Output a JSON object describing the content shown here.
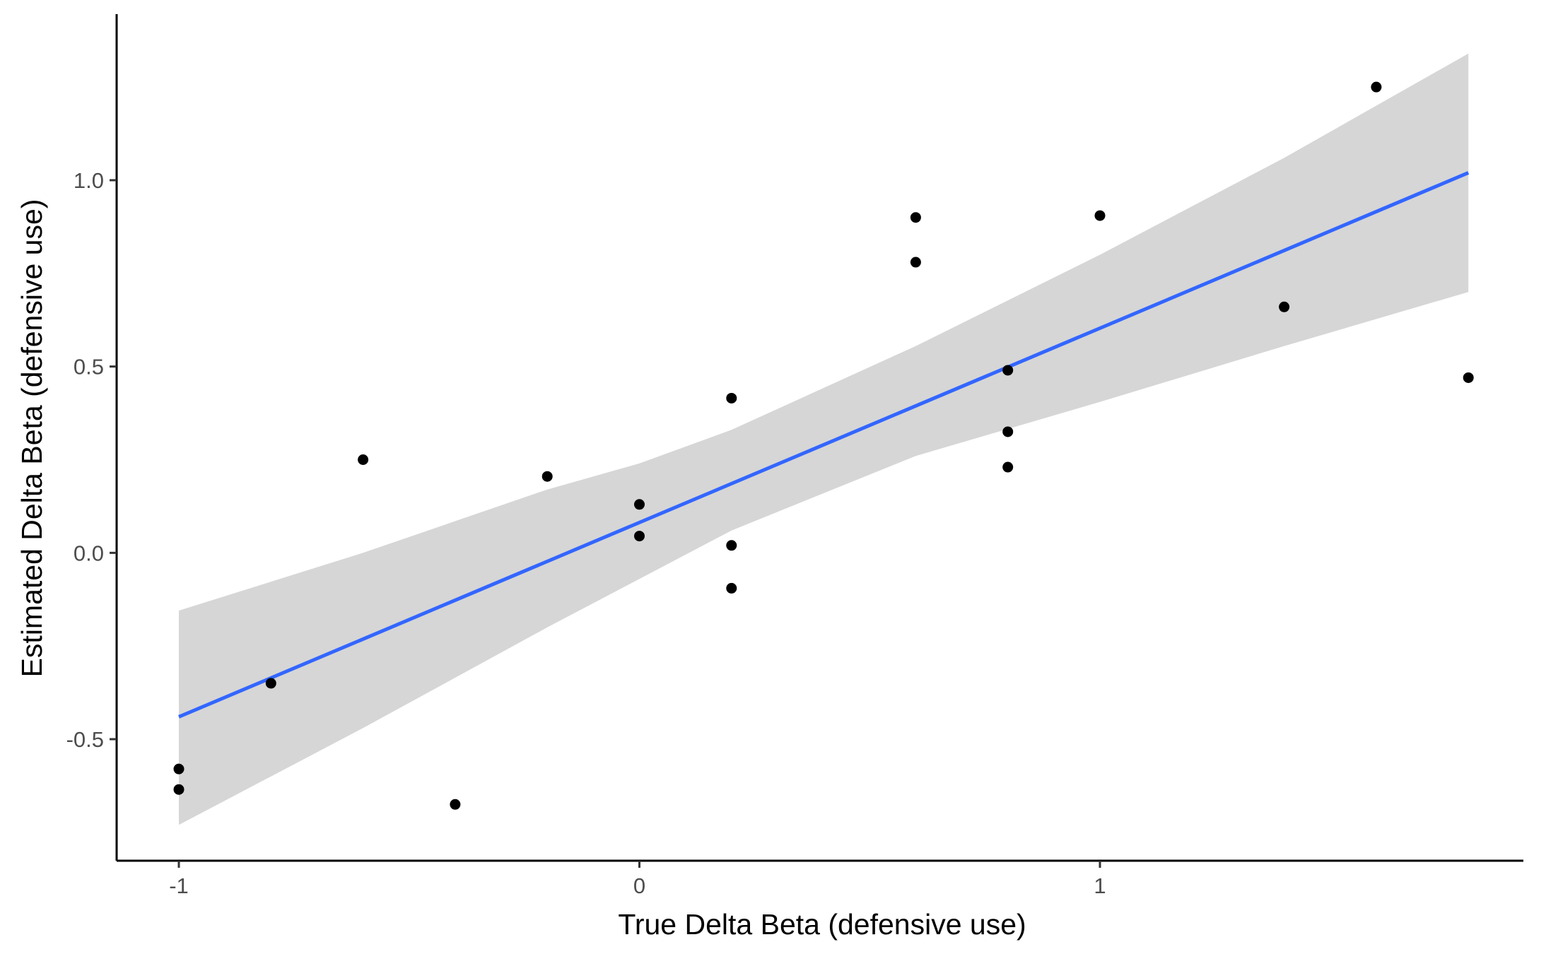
{
  "chart_data": {
    "type": "scatter",
    "xlabel": "True Delta Beta (defensive use)",
    "ylabel": "Estimated Delta Beta (defensive use)",
    "xlim": [
      -1.14,
      1.94
    ],
    "ylim": [
      -0.83,
      1.44
    ],
    "x_ticks": [
      -1,
      0,
      1
    ],
    "x_tick_labels": [
      "-1",
      "0",
      "1"
    ],
    "y_ticks": [
      -0.5,
      0.0,
      0.5,
      1.0
    ],
    "y_tick_labels": [
      "-0.5",
      "0.0",
      "0.5",
      "1.0"
    ],
    "grid": false,
    "legend": "none",
    "colors": {
      "points": "#000000",
      "fit_line": "#3366FF",
      "confidence_band": "#d6d6d6",
      "axis": "#000000",
      "tick_text": "#4d4d4d"
    },
    "points": [
      {
        "x": -1.0,
        "y": -0.58
      },
      {
        "x": -1.0,
        "y": -0.635
      },
      {
        "x": -0.8,
        "y": -0.35
      },
      {
        "x": -0.6,
        "y": 0.25
      },
      {
        "x": -0.4,
        "y": -0.675
      },
      {
        "x": -0.2,
        "y": 0.205
      },
      {
        "x": 0.0,
        "y": 0.13
      },
      {
        "x": 0.0,
        "y": 0.045
      },
      {
        "x": 0.2,
        "y": 0.415
      },
      {
        "x": 0.2,
        "y": 0.02
      },
      {
        "x": 0.2,
        "y": -0.095
      },
      {
        "x": 0.6,
        "y": 0.9
      },
      {
        "x": 0.6,
        "y": 0.78
      },
      {
        "x": 0.8,
        "y": 0.49
      },
      {
        "x": 0.8,
        "y": 0.325
      },
      {
        "x": 0.8,
        "y": 0.23
      },
      {
        "x": 1.0,
        "y": 0.905
      },
      {
        "x": 1.4,
        "y": 0.66
      },
      {
        "x": 1.6,
        "y": 1.25
      },
      {
        "x": 1.8,
        "y": 0.47
      }
    ],
    "fit_line": {
      "x": [
        -1.0,
        1.8
      ],
      "y": [
        -0.44,
        1.02
      ]
    },
    "confidence_band": {
      "x": [
        -1.0,
        -0.6,
        -0.2,
        0.0,
        0.2,
        0.6,
        1.0,
        1.4,
        1.8
      ],
      "lower": [
        -0.73,
        -0.47,
        -0.2,
        -0.07,
        0.06,
        0.26,
        0.405,
        0.555,
        0.7
      ],
      "upper": [
        -0.155,
        0.0,
        0.17,
        0.24,
        0.33,
        0.555,
        0.8,
        1.06,
        1.34
      ]
    }
  }
}
